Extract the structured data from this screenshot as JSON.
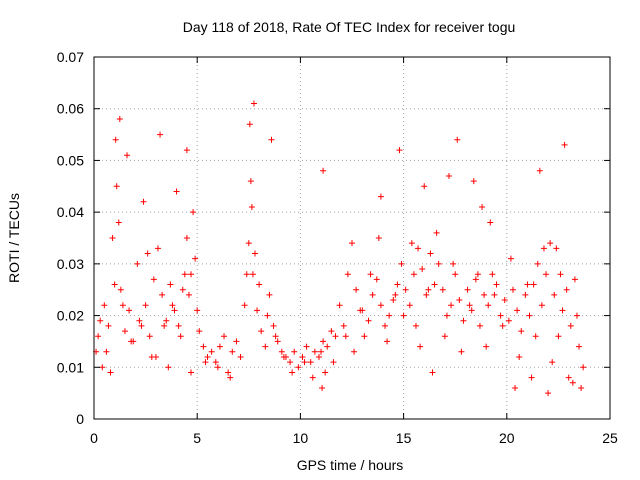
{
  "chart_data": {
    "type": "scatter",
    "title": "Day 118 of 2018, Rate Of TEC Index for receiver togu",
    "xlabel": "GPS time / hours",
    "ylabel": "ROTI / TECUs",
    "xlim": [
      0,
      25
    ],
    "ylim": [
      0,
      0.07
    ],
    "x_ticks": [
      0,
      5,
      10,
      15,
      20,
      25
    ],
    "x_tick_labels": [
      "0",
      "5",
      "10",
      "15",
      "20",
      "25"
    ],
    "y_ticks": [
      0,
      0.01,
      0.02,
      0.03,
      0.04,
      0.05,
      0.06,
      0.07
    ],
    "y_tick_labels": [
      "0",
      "0.01",
      "0.02",
      "0.03",
      "0.04",
      "0.05",
      "0.06",
      "0.07"
    ],
    "grid": true,
    "marker": "+",
    "marker_color": "#ff0000",
    "series": [
      {
        "name": "ROTI",
        "x": [
          0.1,
          0.3,
          0.5,
          0.7,
          0.9,
          1.1,
          1.3,
          1.5,
          1.7,
          1.9,
          2.1,
          2.3,
          2.5,
          2.7,
          2.9,
          3.1,
          3.3,
          3.5,
          3.7,
          3.9,
          4.1,
          4.3,
          4.5,
          4.7,
          4.9,
          5.1,
          5.3,
          5.5,
          5.7,
          5.9,
          6.1,
          6.3,
          6.5,
          6.7,
          6.9,
          7.1,
          7.3,
          7.5,
          7.7,
          7.9,
          8.1,
          8.3,
          8.5,
          8.7,
          8.9,
          9.1,
          9.3,
          9.5,
          9.7,
          9.9,
          10.1,
          10.3,
          10.5,
          10.7,
          10.9,
          11.1,
          11.3,
          11.5,
          11.7,
          11.9,
          12.1,
          12.3,
          12.5,
          12.7,
          12.9,
          13.1,
          13.3,
          13.5,
          13.7,
          13.9,
          14.1,
          14.3,
          14.5,
          14.7,
          14.9,
          15.1,
          15.3,
          15.5,
          15.7,
          15.9,
          16.1,
          16.3,
          16.5,
          16.7,
          16.9,
          17.1,
          17.3,
          17.5,
          17.7,
          17.9,
          18.1,
          18.3,
          18.5,
          18.7,
          18.9,
          19.1,
          19.3,
          19.5,
          19.7,
          19.9,
          20.1,
          20.3,
          20.5,
          20.7,
          20.9,
          21.1,
          21.3,
          21.5,
          21.7,
          21.9,
          22.1,
          22.3,
          22.5,
          22.7,
          22.9,
          23.1,
          23.3,
          23.5,
          23.7,
          0.2,
          0.6,
          1.0,
          1.2,
          1.4,
          1.8,
          2.2,
          2.6,
          3.0,
          3.4,
          3.8,
          4.2,
          4.4,
          4.6,
          4.8,
          5.0,
          5.4,
          6.0,
          6.6,
          7.4,
          7.6,
          7.8,
          8.0,
          8.4,
          8.8,
          9.2,
          9.6,
          10.2,
          10.6,
          11.0,
          11.2,
          11.6,
          12.2,
          12.6,
          13.0,
          13.4,
          13.8,
          14.2,
          14.6,
          15.0,
          15.4,
          15.8,
          16.2,
          16.6,
          17.0,
          17.4,
          17.8,
          18.2,
          18.6,
          19.0,
          19.4,
          19.8,
          20.2,
          20.6,
          21.0,
          21.4,
          21.8,
          22.2,
          22.6,
          23.0,
          23.4,
          23.6,
          0.4,
          0.8,
          1.05,
          1.25,
          1.6,
          2.4,
          2.8,
          3.2,
          3.6,
          4.0,
          4.5,
          4.7,
          7.55,
          7.65,
          7.75,
          8.6,
          11.05,
          11.1,
          13.9,
          14.8,
          15.6,
          16.0,
          16.4,
          17.2,
          17.6,
          18.4,
          18.8,
          19.2,
          20.4,
          21.2,
          21.6,
          22.0,
          22.4,
          22.8,
          23.2
        ],
        "y": [
          0.013,
          0.019,
          0.022,
          0.018,
          0.035,
          0.045,
          0.025,
          0.017,
          0.021,
          0.015,
          0.03,
          0.018,
          0.022,
          0.016,
          0.027,
          0.033,
          0.024,
          0.019,
          0.026,
          0.021,
          0.018,
          0.025,
          0.035,
          0.028,
          0.031,
          0.017,
          0.014,
          0.012,
          0.013,
          0.011,
          0.014,
          0.016,
          0.009,
          0.013,
          0.015,
          0.012,
          0.022,
          0.034,
          0.028,
          0.021,
          0.017,
          0.014,
          0.024,
          0.018,
          0.015,
          0.013,
          0.012,
          0.011,
          0.013,
          0.01,
          0.012,
          0.014,
          0.011,
          0.013,
          0.012,
          0.015,
          0.014,
          0.017,
          0.016,
          0.022,
          0.018,
          0.028,
          0.034,
          0.025,
          0.021,
          0.016,
          0.019,
          0.024,
          0.027,
          0.022,
          0.018,
          0.02,
          0.023,
          0.026,
          0.03,
          0.025,
          0.022,
          0.028,
          0.033,
          0.029,
          0.024,
          0.032,
          0.026,
          0.03,
          0.025,
          0.02,
          0.022,
          0.028,
          0.023,
          0.019,
          0.025,
          0.021,
          0.027,
          0.018,
          0.024,
          0.022,
          0.028,
          0.026,
          0.02,
          0.023,
          0.019,
          0.025,
          0.021,
          0.017,
          0.024,
          0.02,
          0.026,
          0.03,
          0.022,
          0.028,
          0.034,
          0.024,
          0.016,
          0.021,
          0.025,
          0.018,
          0.027,
          0.014,
          0.01,
          0.016,
          0.013,
          0.026,
          0.038,
          0.022,
          0.015,
          0.019,
          0.032,
          0.012,
          0.018,
          0.022,
          0.016,
          0.028,
          0.024,
          0.04,
          0.021,
          0.011,
          0.01,
          0.008,
          0.028,
          0.046,
          0.032,
          0.026,
          0.02,
          0.016,
          0.012,
          0.009,
          0.011,
          0.008,
          0.013,
          0.009,
          0.011,
          0.016,
          0.013,
          0.021,
          0.028,
          0.035,
          0.015,
          0.024,
          0.02,
          0.034,
          0.014,
          0.025,
          0.036,
          0.016,
          0.03,
          0.013,
          0.022,
          0.028,
          0.014,
          0.024,
          0.018,
          0.031,
          0.012,
          0.026,
          0.016,
          0.033,
          0.011,
          0.028,
          0.008,
          0.02,
          0.006,
          0.01,
          0.009,
          0.054,
          0.058,
          0.051,
          0.042,
          0.012,
          0.055,
          0.01,
          0.044,
          0.052,
          0.009,
          0.057,
          0.041,
          0.061,
          0.054,
          0.006,
          0.048,
          0.043,
          0.052,
          0.018,
          0.045,
          0.009,
          0.047,
          0.054,
          0.046,
          0.041,
          0.038,
          0.006,
          0.008,
          0.048,
          0.005,
          0.033,
          0.053,
          0.007
        ]
      }
    ]
  }
}
